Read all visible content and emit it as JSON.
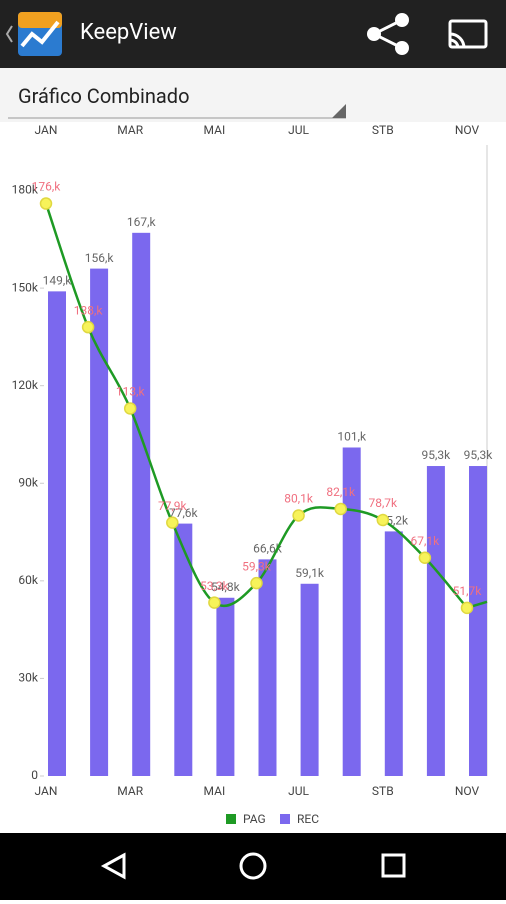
{
  "app": {
    "title": "KeepView",
    "selector": "Gráfico Combinado"
  },
  "chart_data": {
    "type": "combo",
    "categories": [
      "JAN",
      null,
      "MAR",
      null,
      "MAI",
      null,
      "JUL",
      null,
      "STB",
      null,
      "NOV"
    ],
    "series": [
      {
        "name": "PAG",
        "type": "line",
        "color": "#1e9a24",
        "values": [
          176000,
          138000,
          113000,
          77900,
          53300,
          59300,
          80100,
          82100,
          78700,
          67100,
          51700
        ],
        "value_labels": [
          "176,k",
          "138,k",
          "113,k",
          "77,9k",
          "53,3k",
          "59,3k",
          "80,1k",
          "82,1k",
          "78,7k",
          "67,1k",
          "51,7k"
        ]
      },
      {
        "name": "REC",
        "type": "bar",
        "color": "#7b68ee",
        "values": [
          149000,
          156000,
          167000,
          77600,
          54800,
          66600,
          59100,
          101000,
          75200,
          95300,
          95300
        ],
        "value_labels": [
          "149,k",
          "156,k",
          "167,k",
          "77,6k",
          "54,8k",
          "66,6k",
          "59,1k",
          "101,k",
          "75,2k",
          "95,3k",
          "95,3k"
        ]
      }
    ],
    "ylim": [
      0,
      194000
    ],
    "yticks": [
      0,
      {
        "value": 30000,
        "label": "30k"
      },
      {
        "value": 60000,
        "label": "60k"
      },
      {
        "value": 90000,
        "label": "90k"
      },
      {
        "value": 120000,
        "label": "120k"
      },
      {
        "value": 150000,
        "label": "150k"
      },
      {
        "value": 180000,
        "label": "180k"
      }
    ],
    "legend": "bottom"
  }
}
